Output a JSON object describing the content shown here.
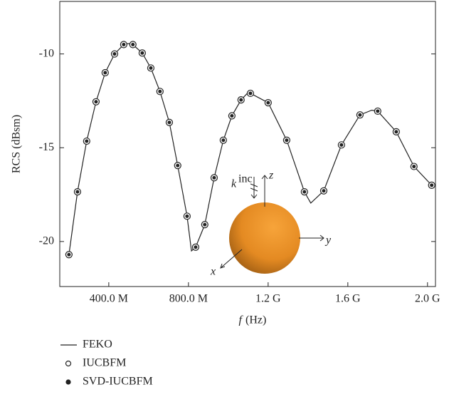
{
  "chart_data": {
    "type": "line",
    "y_label": "RCS (dBsm)",
    "x_label_symbol": "f",
    "x_label_unit": "(Hz)",
    "xlim": [
      154000000,
      2040000000
    ],
    "ylim": [
      -22.4,
      -7.2
    ],
    "xticks": [
      {
        "value": 400000000,
        "label": "400.0 M"
      },
      {
        "value": 800000000,
        "label": "800.0 M"
      },
      {
        "value": 1200000000,
        "label": "1.2 G"
      },
      {
        "value": 1600000000,
        "label": "1.6 G"
      },
      {
        "value": 2000000000,
        "label": "2.0 G"
      }
    ],
    "yticks": [
      -10,
      -15,
      -20
    ],
    "inset_labels": {
      "k": "k",
      "inc": "inc",
      "z": "z",
      "y": "y",
      "x": "x"
    },
    "series": [
      {
        "name": "FEKO",
        "color": "#222222",
        "style": "line",
        "x": [
          200000000,
          243000000,
          289000000,
          336000000,
          382000000,
          429000000,
          475000000,
          498000000,
          521000000,
          568000000,
          611000000,
          657000000,
          704000000,
          746000000,
          793000000,
          815000000,
          836000000,
          882000000,
          929000000,
          975000000,
          1018000000,
          1064000000,
          1100000000,
          1111000000,
          1200000000,
          1293000000,
          1382000000,
          1414000000,
          1479000000,
          1568000000,
          1661000000,
          1720000000,
          1750000000,
          1843000000,
          1932000000,
          2021000000
        ],
        "values": [
          -20.7,
          -17.35,
          -14.65,
          -12.55,
          -11.0,
          -10.0,
          -9.5,
          -9.45,
          -9.5,
          -9.95,
          -10.75,
          -12.0,
          -13.65,
          -15.95,
          -18.65,
          -20.5,
          -20.3,
          -19.1,
          -16.6,
          -14.6,
          -13.3,
          -12.45,
          -12.05,
          -12.1,
          -12.6,
          -14.6,
          -17.35,
          -17.95,
          -17.3,
          -14.85,
          -13.25,
          -13.0,
          -13.05,
          -14.15,
          -16.0,
          -17.0
        ]
      },
      {
        "name": "IUCBFM",
        "color": "#222222",
        "style": "open",
        "x": [
          200000000,
          243000000,
          289000000,
          336000000,
          382000000,
          429000000,
          475000000,
          521000000,
          568000000,
          611000000,
          657000000,
          704000000,
          746000000,
          793000000,
          836000000,
          882000000,
          929000000,
          975000000,
          1018000000,
          1064000000,
          1111000000,
          1200000000,
          1293000000,
          1382000000,
          1479000000,
          1568000000,
          1661000000,
          1750000000,
          1843000000,
          1932000000,
          2021000000
        ],
        "values": [
          -20.7,
          -17.35,
          -14.65,
          -12.55,
          -11.0,
          -10.0,
          -9.5,
          -9.5,
          -9.95,
          -10.75,
          -12.0,
          -13.65,
          -15.95,
          -18.65,
          -20.3,
          -19.1,
          -16.6,
          -14.6,
          -13.3,
          -12.45,
          -12.1,
          -12.6,
          -14.6,
          -17.35,
          -17.3,
          -14.85,
          -13.25,
          -13.05,
          -14.15,
          -16.0,
          -17.0
        ]
      },
      {
        "name": "SVD-IUCBFM",
        "color": "#222222",
        "style": "filled",
        "x": [
          200000000,
          243000000,
          289000000,
          336000000,
          382000000,
          429000000,
          475000000,
          521000000,
          568000000,
          611000000,
          657000000,
          704000000,
          746000000,
          793000000,
          836000000,
          882000000,
          929000000,
          975000000,
          1018000000,
          1064000000,
          1111000000,
          1200000000,
          1293000000,
          1382000000,
          1479000000,
          1568000000,
          1661000000,
          1750000000,
          1843000000,
          1932000000,
          2021000000
        ],
        "values": [
          -20.7,
          -17.35,
          -14.65,
          -12.55,
          -11.0,
          -10.0,
          -9.5,
          -9.5,
          -9.95,
          -10.75,
          -12.0,
          -13.65,
          -15.95,
          -18.65,
          -20.3,
          -19.1,
          -16.6,
          -14.6,
          -13.3,
          -12.45,
          -12.1,
          -12.6,
          -14.6,
          -17.35,
          -17.3,
          -14.85,
          -13.25,
          -13.05,
          -14.15,
          -16.0,
          -17.0
        ]
      }
    ]
  }
}
